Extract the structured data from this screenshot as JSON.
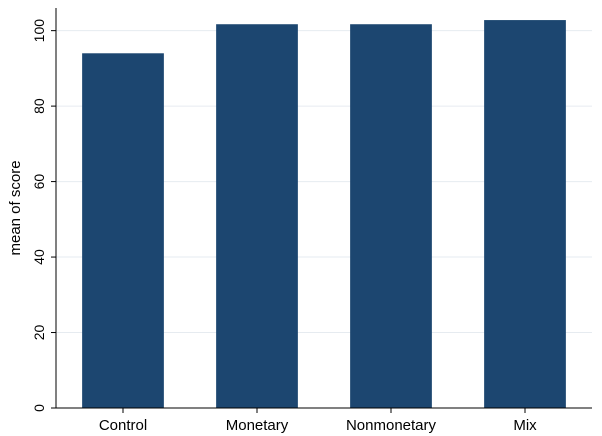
{
  "chart_data": {
    "type": "bar",
    "categories": [
      "Control",
      "Monetary",
      "Nonmonetary",
      "Mix"
    ],
    "values": [
      94,
      101.7,
      101.7,
      102.8
    ],
    "title": "",
    "xlabel": "",
    "ylabel": "mean of score",
    "ylim": [
      0,
      106
    ],
    "yticks": [
      0,
      20,
      40,
      60,
      80,
      100
    ],
    "grid": true,
    "bar_color": "#1c4670",
    "grid_color": "#e6ebf0"
  }
}
